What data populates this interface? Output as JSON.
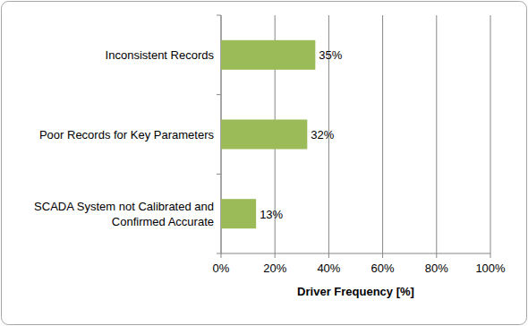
{
  "chart_data": {
    "type": "bar",
    "orientation": "horizontal",
    "categories": [
      "Inconsistent Records",
      "Poor Records for Key Parameters",
      "SCADA System not Calibrated and Confirmed Accurate"
    ],
    "values": [
      35,
      32,
      13
    ],
    "value_labels": [
      "35%",
      "32%",
      "13%"
    ],
    "color": "#9bbb59",
    "xlabel": "Driver Frequency [%]",
    "xlim": [
      0,
      100
    ],
    "xticks": [
      {
        "value": 0,
        "label": "0%"
      },
      {
        "value": 20,
        "label": "20%"
      },
      {
        "value": 40,
        "label": "40%"
      },
      {
        "value": 60,
        "label": "60%"
      },
      {
        "value": 80,
        "label": "80%"
      },
      {
        "value": 100,
        "label": "100%"
      }
    ],
    "grid": true,
    "data_labels": true
  }
}
